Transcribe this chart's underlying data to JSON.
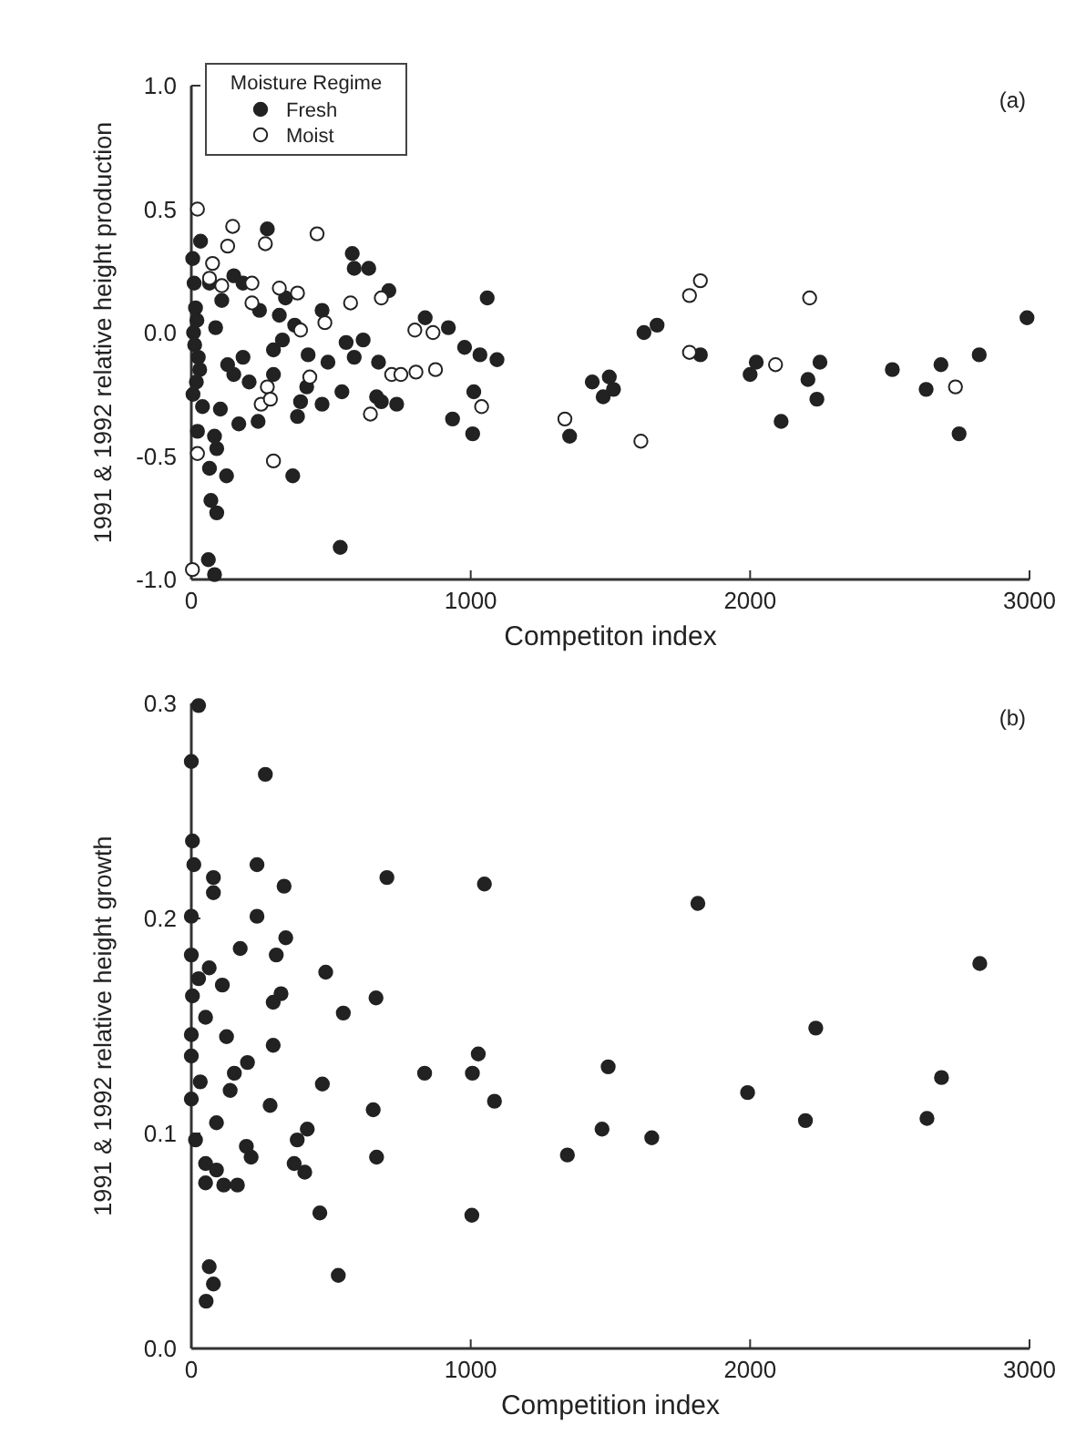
{
  "chart_data": [
    {
      "type": "scatter",
      "xlabel": "Competiton index",
      "ylabel": "1991 & 1992 relative height production",
      "legend_title": "Moisture Regime",
      "legend": "top left",
      "marker": "circle",
      "annotations": [
        "(a)"
      ],
      "xlim": [
        0,
        3000
      ],
      "xticks": [
        0,
        1000,
        2000,
        3000
      ],
      "ylim": [
        -1,
        1
      ],
      "yticks": [
        {
          "value": -1,
          "label": "-1.0"
        },
        {
          "value": -0.5,
          "label": "-0.5"
        },
        {
          "value": 0,
          "label": "0.0"
        },
        {
          "value": 0.5,
          "label": "0.5"
        },
        {
          "value": 1,
          "label": "1.0"
        }
      ],
      "series": [
        {
          "name": "Fresh",
          "color": "#222222",
          "x": [
            33,
            272,
            576,
            583,
            635,
            707,
            1059,
            152,
            185,
            337,
            244,
            468,
            315,
            370,
            837,
            920,
            978,
            1033,
            1094,
            554,
            615,
            583,
            670,
            418,
            489,
            326,
            294,
            185,
            152,
            207,
            294,
            413,
            468,
            391,
            539,
            663,
            680,
            735,
            1011,
            935,
            1007,
            380,
            170,
            239,
            104,
            83,
            91,
            65,
            126,
            363,
            70,
            91,
            533,
            61,
            83,
            1435,
            1496,
            1474,
            1511,
            1354,
            5,
            10,
            15,
            20,
            8,
            12,
            25,
            30,
            18,
            6,
            40,
            22,
            65,
            109,
            87,
            130,
            1620,
            1667,
            1822,
            2022,
            2000,
            2111,
            2207,
            2250,
            2239,
            2509,
            2630,
            2683,
            2748,
            2820,
            2991
          ],
          "values": [
            0.37,
            0.42,
            0.32,
            0.26,
            0.26,
            0.17,
            0.14,
            0.23,
            0.2,
            0.14,
            0.09,
            0.09,
            0.07,
            0.03,
            0.06,
            0.02,
            -0.06,
            -0.09,
            -0.11,
            -0.04,
            -0.03,
            -0.1,
            -0.12,
            -0.09,
            -0.12,
            -0.03,
            -0.07,
            -0.1,
            -0.17,
            -0.2,
            -0.17,
            -0.22,
            -0.29,
            -0.28,
            -0.24,
            -0.26,
            -0.28,
            -0.29,
            -0.24,
            -0.35,
            -0.41,
            -0.34,
            -0.37,
            -0.36,
            -0.31,
            -0.42,
            -0.47,
            -0.55,
            -0.58,
            -0.58,
            -0.68,
            -0.73,
            -0.87,
            -0.92,
            -0.98,
            -0.2,
            -0.18,
            -0.26,
            -0.23,
            -0.42,
            0.3,
            0.2,
            0.1,
            0.05,
            0,
            -0.05,
            -0.1,
            -0.15,
            -0.2,
            -0.25,
            -0.3,
            -0.4,
            0.2,
            0.13,
            0.02,
            -0.13,
            0,
            0.03,
            -0.09,
            -0.12,
            -0.17,
            -0.36,
            -0.19,
            -0.12,
            -0.27,
            -0.15,
            -0.23,
            -0.13,
            -0.41,
            -0.09,
            0.06
          ]
        },
        {
          "name": "Moist",
          "color": "#ffffff",
          "x": [
            22,
            148,
            265,
            450,
            130,
            76,
            217,
            315,
            380,
            570,
            680,
            217,
            478,
            391,
            800,
            865,
            717,
            750,
            804,
            874,
            424,
            272,
            250,
            283,
            641,
            1039,
            1337,
            294,
            22,
            4,
            65,
            109,
            1609,
            1783,
            1822,
            1783,
            2091,
            2213,
            2735
          ],
          "values": [
            0.5,
            0.43,
            0.36,
            0.4,
            0.35,
            0.28,
            0.2,
            0.18,
            0.16,
            0.12,
            0.14,
            0.12,
            0.04,
            0.01,
            0.01,
            0,
            -0.17,
            -0.17,
            -0.16,
            -0.15,
            -0.18,
            -0.22,
            -0.29,
            -0.27,
            -0.33,
            -0.3,
            -0.35,
            -0.52,
            -0.49,
            -0.96,
            0.22,
            0.19,
            -0.44,
            0.15,
            0.21,
            -0.08,
            -0.13,
            0.14,
            -0.22
          ]
        }
      ]
    },
    {
      "type": "scatter",
      "xlabel": "Competition index",
      "ylabel": "1991 & 1992 relative height growth",
      "marker": "circle",
      "annotations": [
        "(b)"
      ],
      "xlim": [
        0,
        3000
      ],
      "xticks": [
        0,
        1000,
        2000,
        3000
      ],
      "ylim": [
        0,
        0.3
      ],
      "yticks": [
        {
          "value": 0,
          "label": "0.0"
        },
        0.1,
        0.2,
        0.3
      ],
      "series": [
        {
          "color": "#222222",
          "x": [
            26,
            0,
            265,
            4,
            9,
            235,
            79,
            79,
            332,
            700,
            1049,
            235,
            0,
            338,
            175,
            304,
            0,
            64,
            26,
            111,
            481,
            321,
            4,
            661,
            293,
            544,
            51,
            0,
            126,
            0,
            293,
            201,
            154,
            835,
            1006,
            1027,
            1492,
            139,
            32,
            469,
            1085,
            282,
            0,
            651,
            90,
            15,
            1470,
            379,
            415,
            197,
            214,
            663,
            1346,
            51,
            90,
            368,
            406,
            51,
            116,
            165,
            460,
            1004,
            526,
            64,
            79,
            53,
            1813,
            2822,
            2235,
            1991,
            2685,
            1648,
            2198,
            2633
          ],
          "values": [
            0.299,
            0.273,
            0.267,
            0.236,
            0.225,
            0.225,
            0.219,
            0.212,
            0.215,
            0.219,
            0.216,
            0.201,
            0.201,
            0.191,
            0.186,
            0.183,
            0.183,
            0.177,
            0.172,
            0.169,
            0.175,
            0.165,
            0.164,
            0.163,
            0.161,
            0.156,
            0.154,
            0.146,
            0.145,
            0.136,
            0.141,
            0.133,
            0.128,
            0.128,
            0.128,
            0.137,
            0.131,
            0.12,
            0.124,
            0.123,
            0.115,
            0.113,
            0.116,
            0.111,
            0.105,
            0.097,
            0.102,
            0.097,
            0.102,
            0.094,
            0.089,
            0.089,
            0.09,
            0.086,
            0.083,
            0.086,
            0.082,
            0.077,
            0.076,
            0.076,
            0.063,
            0.062,
            0.034,
            0.038,
            0.03,
            0.022,
            0.207,
            0.179,
            0.149,
            0.119,
            0.126,
            0.098,
            0.106,
            0.107
          ]
        }
      ]
    }
  ]
}
